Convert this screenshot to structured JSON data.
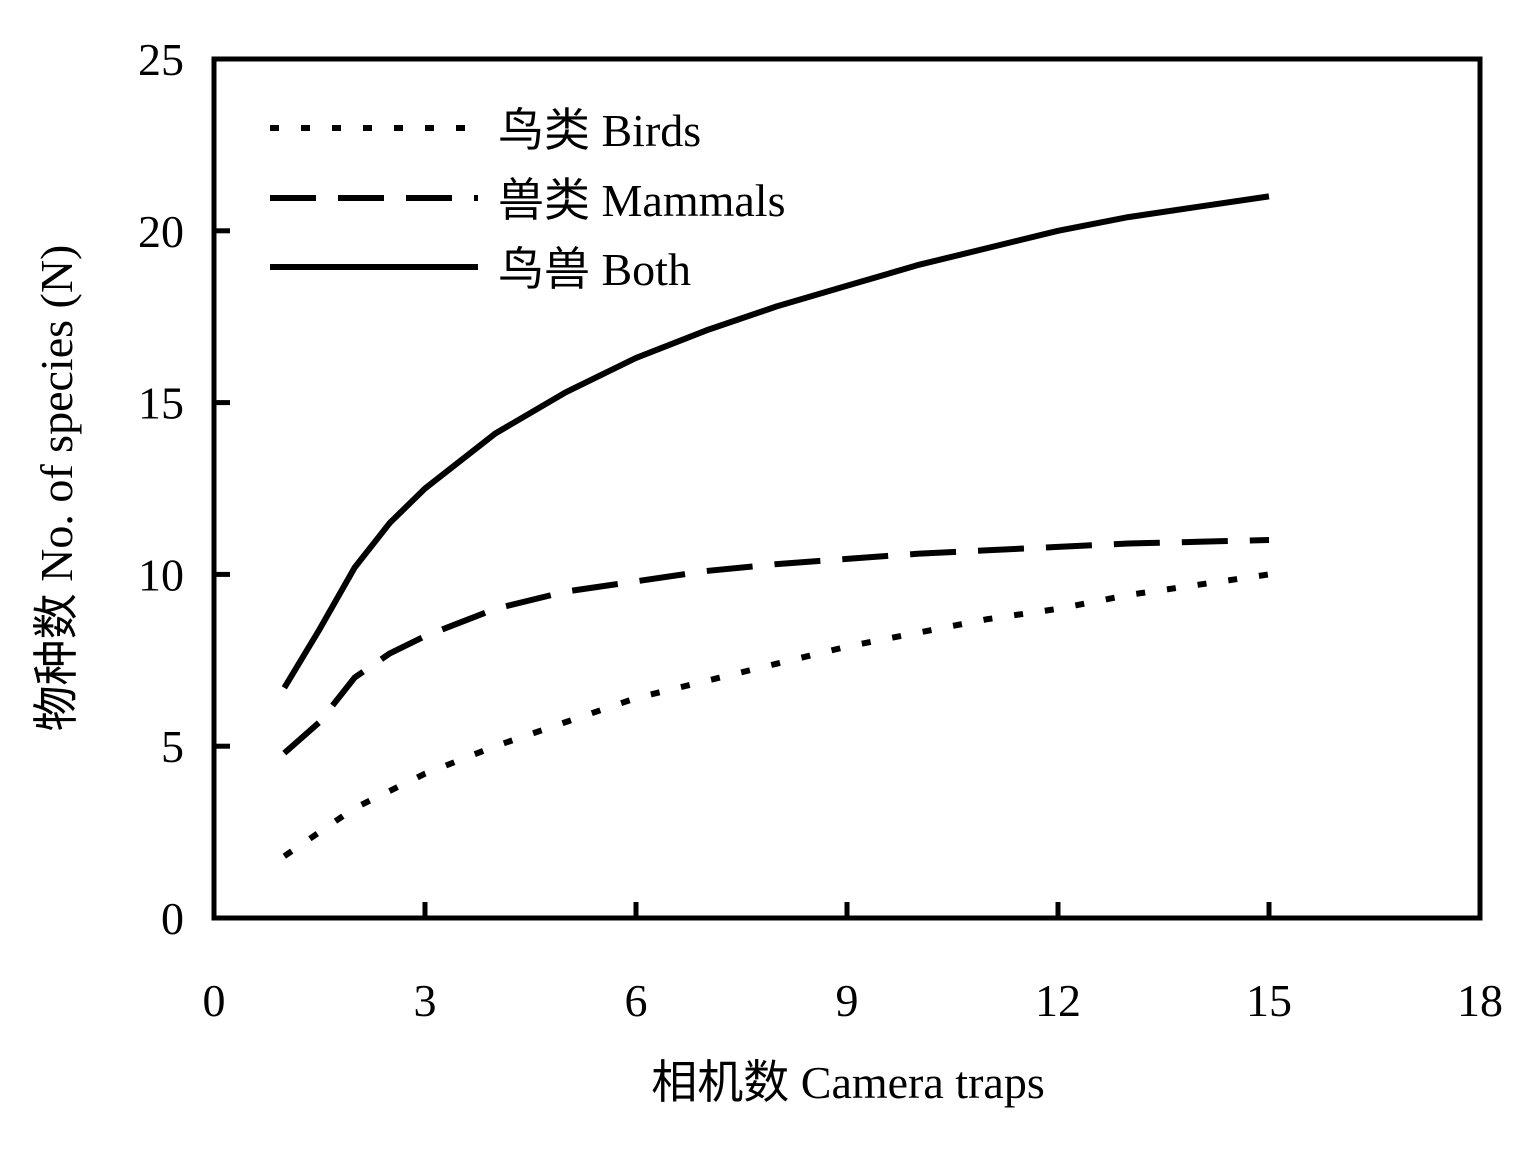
{
  "chart_data": {
    "type": "line",
    "title": "",
    "xlabel": "相机数 Camera traps",
    "ylabel": "物种数 No. of species (N)",
    "xlim": [
      0,
      18
    ],
    "ylim": [
      0,
      25
    ],
    "xticks": [
      0,
      3,
      6,
      9,
      12,
      15,
      18
    ],
    "yticks": [
      0,
      5,
      10,
      15,
      20,
      25
    ],
    "x_tick_labels": [
      "0",
      "3",
      "6",
      "9",
      "12",
      "15",
      "18"
    ],
    "y_tick_labels": [
      "0",
      "5",
      "10",
      "15",
      "20",
      "25"
    ],
    "grid": false,
    "legend_position": "top-left",
    "x": [
      1,
      1.5,
      2,
      2.5,
      3,
      4,
      5,
      6,
      7,
      8,
      9,
      10,
      11,
      12,
      13,
      14,
      15
    ],
    "series": [
      {
        "name": "鸟类 Birds",
        "style": "dotted",
        "values": [
          1.8,
          2.5,
          3.2,
          3.7,
          4.2,
          5.0,
          5.7,
          6.4,
          6.9,
          7.4,
          7.9,
          8.3,
          8.7,
          9.0,
          9.4,
          9.7,
          10.0
        ]
      },
      {
        "name": "兽类 Mammals",
        "style": "dashed",
        "values": [
          4.8,
          5.7,
          7.0,
          7.7,
          8.2,
          9.0,
          9.5,
          9.8,
          10.1,
          10.3,
          10.45,
          10.6,
          10.7,
          10.8,
          10.9,
          10.95,
          11.0
        ]
      },
      {
        "name": "鸟兽 Both",
        "style": "solid",
        "values": [
          6.7,
          8.4,
          10.2,
          11.5,
          12.5,
          14.1,
          15.3,
          16.3,
          17.1,
          17.8,
          18.4,
          19.0,
          19.5,
          20.0,
          20.4,
          20.7,
          21.0
        ]
      }
    ],
    "colors": {
      "line": "#000000",
      "axes": "#000000",
      "background": "#ffffff"
    }
  }
}
